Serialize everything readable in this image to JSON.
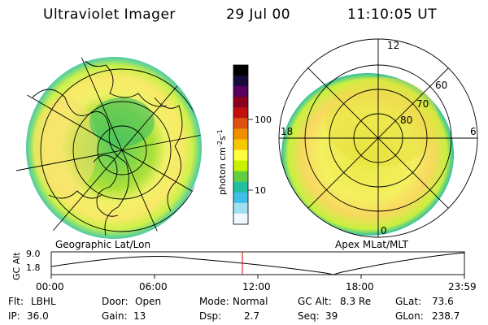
{
  "header": {
    "title": "Ultraviolet Imager",
    "date": "29 Jul 00",
    "time": "11:10:05 UT"
  },
  "colorbar": {
    "label": "photon cm",
    "label_sup1": "-2",
    "label_mid": "s",
    "label_sup2": "-1",
    "ticks": [
      "100",
      "10"
    ],
    "colors": [
      "#000000",
      "#1a0a3c",
      "#5a0060",
      "#8a0020",
      "#c01010",
      "#e05010",
      "#f09000",
      "#f8c800",
      "#ffff40",
      "#c8f000",
      "#60d040",
      "#20c0a0",
      "#40c0e8",
      "#a0e0f0",
      "#f0f8ff"
    ]
  },
  "left_panel": {
    "label": "Geographic Lat/Lon"
  },
  "right_panel": {
    "label": "Apex MLat/MLT",
    "mlt_labels": [
      "12",
      "18",
      "6",
      "0"
    ],
    "lat_labels": [
      "60",
      "70",
      "80"
    ]
  },
  "altitude_plot": {
    "axis_label": "GC Alt",
    "y_ticks": [
      "9.0",
      "1.8"
    ],
    "x_ticks": [
      "00:00",
      "06:00",
      "12:00",
      "18:00",
      "23:59"
    ],
    "marker_color": "#e00000"
  },
  "info": {
    "flt_label": "Flt:",
    "flt_value": "LBHL",
    "ip_label": "IP:",
    "ip_value": "36.0",
    "door_label": "Door:",
    "door_value": "Open",
    "gain_label": "Gain:",
    "gain_value": "13",
    "mode_label": "Mode:",
    "mode_value": "Normal",
    "dsp_label": "Dsp:",
    "dsp_value": "2.7",
    "gcalt_label": "GC Alt:",
    "gcalt_value": "8.3 Re",
    "seq_label": "Seq:",
    "seq_value": "39",
    "glat_label": "GLat:",
    "glat_value": "73.6",
    "glon_label": "GLon:",
    "glon_value": "238.7"
  }
}
